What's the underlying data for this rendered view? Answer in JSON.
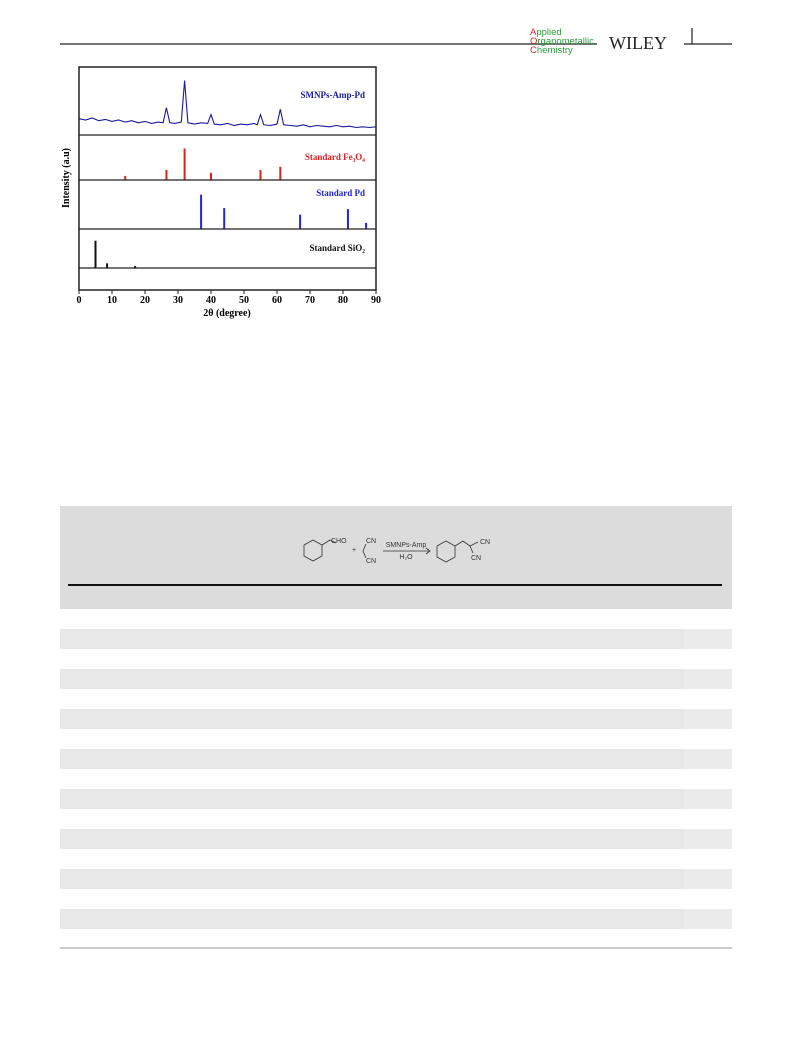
{
  "header": {
    "journal": [
      "Applied",
      "Organometallic",
      "Chemistry"
    ],
    "publisher": "WILEY"
  },
  "chart_data": {
    "type": "xrd",
    "xlabel": "2θ (degree)",
    "ylabel": "Intensity (a.u)",
    "xlim": [
      0,
      90
    ],
    "xticks": [
      0,
      10,
      20,
      30,
      40,
      50,
      60,
      70,
      80,
      90
    ],
    "ylim": [
      0,
      100
    ],
    "panels": [
      {
        "name": "SMNPs-Amp-Pd",
        "color": "#1a1a9a",
        "kind": "line",
        "x": [
          0,
          2,
          4,
          6,
          8,
          10,
          12,
          14,
          16,
          18,
          20,
          22,
          24,
          25.5,
          26.5,
          27.5,
          29,
          31,
          32,
          33,
          35,
          37,
          39,
          40,
          41,
          43,
          45,
          47,
          49,
          51,
          53,
          54,
          55,
          56,
          58,
          60,
          61,
          62,
          64,
          66,
          68,
          70,
          72,
          74,
          76,
          78,
          80,
          82,
          84,
          86,
          88,
          90
        ],
        "values": [
          24,
          22,
          25,
          21,
          23,
          20,
          22,
          19,
          21,
          18,
          20,
          17,
          19,
          18,
          40,
          18,
          17,
          19,
          80,
          18,
          16,
          18,
          17,
          30,
          16,
          15,
          17,
          14,
          16,
          15,
          17,
          15,
          30,
          15,
          14,
          16,
          38,
          15,
          14,
          13,
          15,
          12,
          14,
          13,
          12,
          14,
          12,
          13,
          11,
          12,
          11,
          12
        ]
      },
      {
        "name": "Standard Fe₃O₄",
        "color": "#e02020",
        "kind": "stick",
        "x": [
          14,
          26.5,
          32,
          40,
          55,
          61
        ],
        "values": [
          13,
          32,
          100,
          23,
          32,
          42
        ]
      },
      {
        "name": "Standard Pd",
        "color": "#2323d8",
        "kind": "stick",
        "x": [
          37,
          44,
          67,
          81.5,
          87
        ],
        "values": [
          100,
          61,
          42,
          58,
          18
        ]
      },
      {
        "name": "Standard SiO₂",
        "color": "#111111",
        "kind": "stick",
        "x": [
          5,
          8.5,
          17
        ],
        "values": [
          100,
          17,
          7
        ]
      }
    ]
  },
  "scheme": {
    "aldehyde": "CHO",
    "plus": "+",
    "nitrile": [
      "CN",
      "CN"
    ],
    "catalyst": "SMNPs-Amp",
    "solvent": "H₂O",
    "product": [
      "CN",
      "CN"
    ]
  }
}
